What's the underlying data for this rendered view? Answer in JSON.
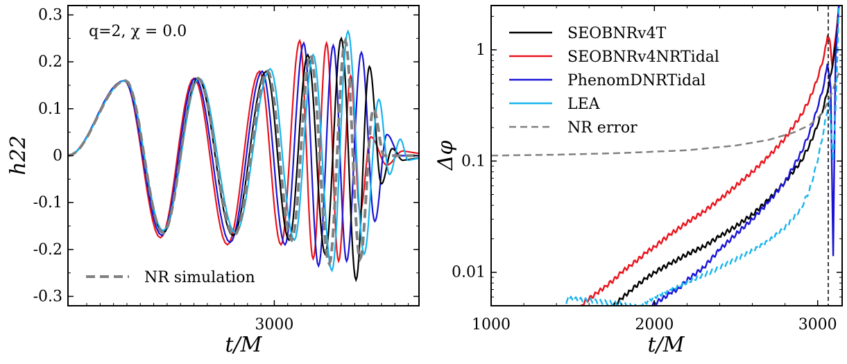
{
  "colors": {
    "SEOBNRv4T": "#000000",
    "SEOBNRv4NRTidal": "#e8141c",
    "PhenomDNRTidal": "#1a14d4",
    "LEA": "#16b4ec",
    "NR": "#808080"
  },
  "chart_data": [
    {
      "type": "line",
      "annotation": "q=2, χ = 0.0",
      "xlabel": "t/M",
      "ylabel": "h22",
      "xtick_labels": [
        "3000"
      ],
      "ytick_labels": [
        "0.3",
        "0.2",
        "0.1",
        "0",
        "-0.1",
        "-0.2",
        "-0.3"
      ],
      "ylim": [
        -0.32,
        0.32
      ],
      "legend": [
        {
          "label": "NR simulation",
          "style": "dashed-gray"
        }
      ],
      "legend_position": "lower-left",
      "grid": false,
      "series": [
        {
          "name": "SEOBNRv4NRTidal",
          "color_key": "SEOBNRv4NRTidal",
          "extrema": [
            [
              2440,
              0.16
            ],
            [
              2575,
              -0.175
            ],
            [
              2700,
              0.165
            ],
            [
              2825,
              -0.19
            ],
            [
              2945,
              0.18
            ],
            [
              3025,
              -0.19
            ],
            [
              3095,
              0.245
            ],
            [
              3145,
              -0.22
            ],
            [
              3195,
              0.24
            ],
            [
              3240,
              -0.225
            ],
            [
              3285,
              0.17
            ],
            [
              3320,
              -0.12
            ],
            [
              3360,
              0.04
            ],
            [
              3420,
              -0.02
            ],
            [
              3480,
              0.01
            ]
          ]
        },
        {
          "name": "PhenomDNRTidal",
          "color_key": "PhenomDNRTidal",
          "extrema": [
            [
              2440,
              0.16
            ],
            [
              2580,
              -0.17
            ],
            [
              2705,
              0.165
            ],
            [
              2835,
              -0.185
            ],
            [
              2955,
              0.18
            ],
            [
              3040,
              -0.19
            ],
            [
              3110,
              0.24
            ],
            [
              3165,
              -0.235
            ],
            [
              3220,
              0.235
            ],
            [
              3270,
              -0.225
            ],
            [
              3325,
              0.22
            ],
            [
              3375,
              -0.14
            ],
            [
              3420,
              0.045
            ],
            [
              3470,
              0.0
            ]
          ]
        },
        {
          "name": "SEOBNRv4T",
          "color_key": "SEOBNRv4T",
          "extrema": [
            [
              2445,
              0.16
            ],
            [
              2585,
              -0.165
            ],
            [
              2715,
              0.165
            ],
            [
              2845,
              -0.17
            ],
            [
              2970,
              0.18
            ],
            [
              3055,
              -0.18
            ],
            [
              3125,
              0.215
            ],
            [
              3190,
              -0.21
            ],
            [
              3250,
              0.25
            ],
            [
              3305,
              -0.265
            ],
            [
              3355,
              0.19
            ],
            [
              3400,
              -0.06
            ],
            [
              3440,
              0.015
            ],
            [
              3480,
              -0.01
            ]
          ]
        },
        {
          "name": "LEA",
          "color_key": "LEA",
          "extrema": [
            [
              2445,
              0.16
            ],
            [
              2585,
              -0.16
            ],
            [
              2720,
              0.165
            ],
            [
              2855,
              -0.165
            ],
            [
              2985,
              0.185
            ],
            [
              3075,
              -0.18
            ],
            [
              3145,
              0.215
            ],
            [
              3215,
              -0.245
            ],
            [
              3275,
              0.265
            ],
            [
              3335,
              -0.21
            ],
            [
              3390,
              0.12
            ],
            [
              3430,
              -0.04
            ],
            [
              3470,
              0.035
            ],
            [
              3500,
              -0.01
            ]
          ]
        },
        {
          "name": "NR simulation",
          "color_key": "NR",
          "dashed": true,
          "extrema": [
            [
              2445,
              0.16
            ],
            [
              2585,
              -0.165
            ],
            [
              2715,
              0.165
            ],
            [
              2850,
              -0.17
            ],
            [
              2975,
              0.18
            ],
            [
              3065,
              -0.18
            ],
            [
              3135,
              0.215
            ],
            [
              3205,
              -0.23
            ],
            [
              3265,
              0.245
            ],
            [
              3320,
              -0.22
            ],
            [
              3370,
              0.1
            ],
            [
              3410,
              0.0
            ],
            [
              3460,
              0.0
            ]
          ]
        }
      ]
    },
    {
      "type": "line",
      "xlabel": "t/M",
      "ylabel": "Δφ",
      "yscale": "log",
      "xlim": [
        1000,
        3150
      ],
      "ylim": [
        0.005,
        2.5
      ],
      "xtick_labels": [
        "1000",
        "2000",
        "3000"
      ],
      "ytick_labels": [
        "1",
        "0.1",
        "0.01"
      ],
      "vline_x": 3065,
      "legend": [
        {
          "label": "SEOBNRv4T",
          "color_key": "SEOBNRv4T"
        },
        {
          "label": "SEOBNRv4NRTidal",
          "color_key": "SEOBNRv4NRTidal"
        },
        {
          "label": "PhenomDNRTidal",
          "color_key": "PhenomDNRTidal"
        },
        {
          "label": "LEA",
          "color_key": "LEA"
        },
        {
          "label": "NR error",
          "color_key": "NR",
          "dashed": true
        }
      ],
      "legend_position": "top-left",
      "grid": false,
      "series": [
        {
          "name": "SEOBNRv4NRTidal",
          "color_key": "SEOBNRv4NRTidal",
          "points": [
            [
              1550,
              0.005
            ],
            [
              1600,
              0.0058
            ],
            [
              1650,
              0.0065
            ],
            [
              1700,
              0.0075
            ],
            [
              1750,
              0.0085
            ],
            [
              1800,
              0.01
            ],
            [
              1850,
              0.0115
            ],
            [
              1900,
              0.013
            ],
            [
              1950,
              0.015
            ],
            [
              2000,
              0.017
            ],
            [
              2100,
              0.022
            ],
            [
              2200,
              0.028
            ],
            [
              2300,
              0.035
            ],
            [
              2400,
              0.045
            ],
            [
              2500,
              0.06
            ],
            [
              2600,
              0.08
            ],
            [
              2700,
              0.11
            ],
            [
              2800,
              0.16
            ],
            [
              2900,
              0.26
            ],
            [
              2950,
              0.36
            ],
            [
              3000,
              0.55
            ],
            [
              3040,
              0.9
            ],
            [
              3060,
              1.3
            ],
            [
              3075,
              1.2
            ],
            [
              3090,
              0.7
            ],
            [
              3110,
              1.3
            ],
            [
              3130,
              2.5
            ]
          ]
        },
        {
          "name": "SEOBNRv4T",
          "color_key": "SEOBNRv4T",
          "points": [
            [
              1750,
              0.005
            ],
            [
              1800,
              0.0058
            ],
            [
              1850,
              0.0068
            ],
            [
              1900,
              0.0078
            ],
            [
              1950,
              0.0088
            ],
            [
              2000,
              0.01
            ],
            [
              2100,
              0.012
            ],
            [
              2200,
              0.0145
            ],
            [
              2300,
              0.017
            ],
            [
              2400,
              0.021
            ],
            [
              2500,
              0.026
            ],
            [
              2600,
              0.033
            ],
            [
              2700,
              0.045
            ],
            [
              2800,
              0.065
            ],
            [
              2900,
              0.1
            ],
            [
              2950,
              0.14
            ],
            [
              3000,
              0.21
            ],
            [
              3040,
              0.32
            ],
            [
              3070,
              0.5
            ],
            [
              3090,
              0.7
            ],
            [
              3110,
              1.1
            ],
            [
              3130,
              2.5
            ]
          ]
        },
        {
          "name": "PhenomDNRTidal",
          "color_key": "PhenomDNRTidal",
          "points": [
            [
              1980,
              0.005
            ],
            [
              2050,
              0.0058
            ],
            [
              2100,
              0.0065
            ],
            [
              2150,
              0.0072
            ],
            [
              2200,
              0.0085
            ],
            [
              2300,
              0.011
            ],
            [
              2400,
              0.016
            ],
            [
              2500,
              0.022
            ],
            [
              2600,
              0.03
            ],
            [
              2700,
              0.043
            ],
            [
              2800,
              0.065
            ],
            [
              2900,
              0.12
            ],
            [
              2950,
              0.18
            ],
            [
              3000,
              0.3
            ],
            [
              3040,
              0.5
            ],
            [
              3060,
              0.75
            ],
            [
              3080,
              0.45
            ],
            [
              3095,
              0.014
            ],
            [
              3110,
              0.9
            ],
            [
              3130,
              2.5
            ]
          ]
        },
        {
          "name": "LEA",
          "color_key": "LEA",
          "dashed": true,
          "points": [
            [
              1460,
              0.0052
            ],
            [
              1470,
              0.0058
            ],
            [
              1910,
              0.005
            ],
            [
              2000,
              0.006
            ],
            [
              2100,
              0.007
            ],
            [
              2200,
              0.0082
            ],
            [
              2300,
              0.0095
            ],
            [
              2400,
              0.011
            ],
            [
              2500,
              0.013
            ],
            [
              2600,
              0.0155
            ],
            [
              2700,
              0.019
            ],
            [
              2800,
              0.025
            ],
            [
              2900,
              0.038
            ],
            [
              2950,
              0.055
            ],
            [
              3000,
              0.1
            ],
            [
              3040,
              0.2
            ],
            [
              3070,
              0.35
            ],
            [
              3095,
              0.1
            ],
            [
              3110,
              0.3
            ],
            [
              3130,
              2.5
            ]
          ]
        },
        {
          "name": "NR error",
          "color_key": "NR",
          "dashed": true,
          "points": [
            [
              1000,
              0.112
            ],
            [
              1400,
              0.114
            ],
            [
              1800,
              0.118
            ],
            [
              2200,
              0.125
            ],
            [
              2500,
              0.138
            ],
            [
              2700,
              0.155
            ],
            [
              2850,
              0.18
            ],
            [
              2950,
              0.21
            ],
            [
              3020,
              0.26
            ],
            [
              3060,
              0.33
            ],
            [
              3090,
              0.42
            ],
            [
              3110,
              0.52
            ],
            [
              3130,
              0.62
            ]
          ]
        }
      ]
    }
  ]
}
